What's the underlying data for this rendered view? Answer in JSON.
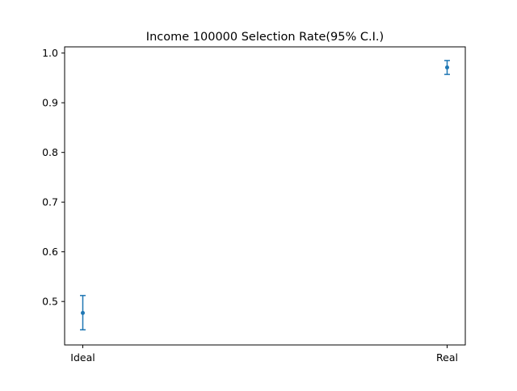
{
  "chart_data": {
    "type": "scatter",
    "title": "Income 100000 Selection Rate(95% C.I.)",
    "xlabel": "",
    "ylabel": "",
    "categories": [
      "Ideal",
      "Real"
    ],
    "series": [
      {
        "values": [
          0.477,
          0.971
        ],
        "ci_lower": [
          0.443,
          0.957
        ],
        "ci_upper": [
          0.512,
          0.985
        ],
        "color": "#1f77b4"
      }
    ],
    "ylim": [
      0.4125,
      1.0125
    ],
    "yticks": [
      0.5,
      0.6,
      0.7,
      0.8,
      0.9,
      1.0
    ],
    "ytick_labels": [
      "0.5",
      "0.6",
      "0.7",
      "0.8",
      "0.9",
      "1.0"
    ],
    "grid": false,
    "legend": "none",
    "error_bars": true
  }
}
